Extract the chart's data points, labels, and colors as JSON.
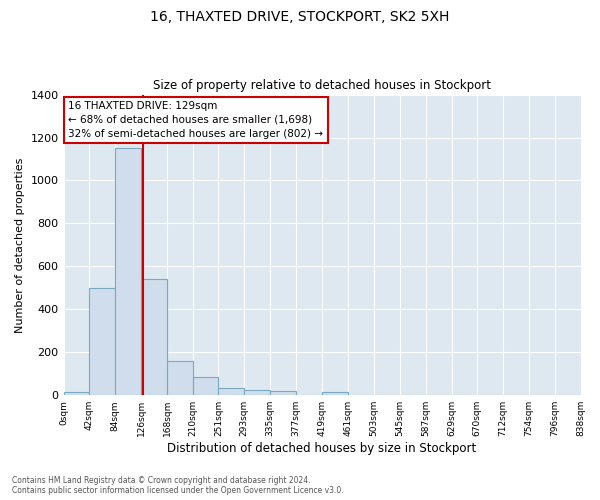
{
  "title": "16, THAXTED DRIVE, STOCKPORT, SK2 5XH",
  "subtitle": "Size of property relative to detached houses in Stockport",
  "xlabel": "Distribution of detached houses by size in Stockport",
  "ylabel": "Number of detached properties",
  "bin_labels": [
    "0sqm",
    "42sqm",
    "84sqm",
    "126sqm",
    "168sqm",
    "210sqm",
    "251sqm",
    "293sqm",
    "335sqm",
    "377sqm",
    "419sqm",
    "461sqm",
    "503sqm",
    "545sqm",
    "587sqm",
    "629sqm",
    "670sqm",
    "712sqm",
    "754sqm",
    "796sqm",
    "838sqm"
  ],
  "bin_edges": [
    0,
    42,
    84,
    126,
    168,
    210,
    251,
    293,
    335,
    377,
    419,
    461,
    503,
    545,
    587,
    629,
    670,
    712,
    754,
    796,
    838
  ],
  "bar_heights": [
    15,
    500,
    1150,
    540,
    160,
    85,
    35,
    25,
    18,
    0,
    15,
    0,
    0,
    0,
    0,
    0,
    0,
    0,
    0,
    0
  ],
  "bar_color": "#cfdded",
  "bar_edge_color": "#7aaabf",
  "red_line_x": 129,
  "annotation_title": "16 THAXTED DRIVE: 129sqm",
  "annotation_line1": "← 68% of detached houses are smaller (1,698)",
  "annotation_line2": "32% of semi-detached houses are larger (802) →",
  "annotation_box_color": "#ffffff",
  "annotation_box_edge": "#cc0000",
  "red_line_color": "#cc0000",
  "ylim": [
    0,
    1400
  ],
  "yticks": [
    0,
    200,
    400,
    600,
    800,
    1000,
    1200,
    1400
  ],
  "ax_background_color": "#dde8f0",
  "fig_background_color": "#ffffff",
  "grid_color": "#ffffff",
  "footer": "Contains HM Land Registry data © Crown copyright and database right 2024.\nContains public sector information licensed under the Open Government Licence v3.0."
}
